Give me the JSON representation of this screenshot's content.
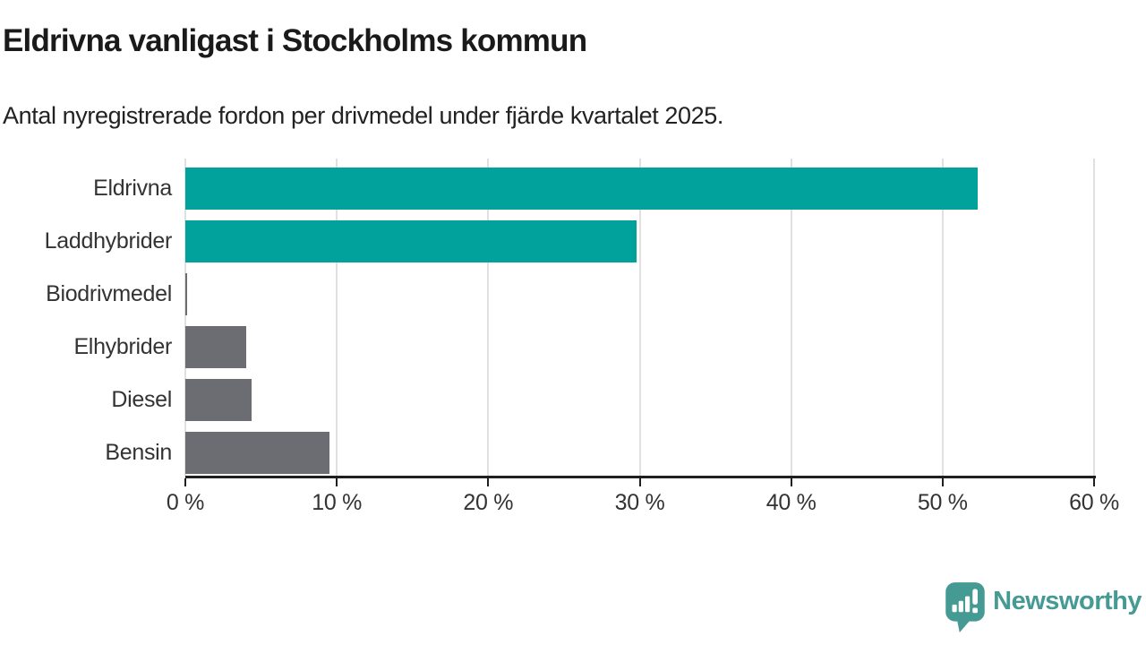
{
  "header": {
    "title": "Eldrivna vanligast i Stockholms kommun",
    "subtitle": "Antal nyregistrerade fordon per drivmedel under fjärde kvartalet 2025."
  },
  "chart_data": {
    "type": "bar",
    "orientation": "horizontal",
    "title": "Eldrivna vanligast i Stockholms kommun",
    "subtitle": "Antal nyregistrerade fordon per drivmedel under fjärde kvartalet 2025.",
    "categories": [
      "Eldrivna",
      "Laddhybrider",
      "Biodrivmedel",
      "Elhybrider",
      "Diesel",
      "Bensin"
    ],
    "values": [
      52.3,
      29.8,
      0.1,
      4.0,
      4.4,
      9.5
    ],
    "unit": "%",
    "xlabel": "",
    "ylabel": "",
    "xlim": [
      0,
      60
    ],
    "x_ticks": [
      0,
      10,
      20,
      30,
      40,
      50,
      60
    ],
    "x_tick_labels": [
      "0 %",
      "10 %",
      "20 %",
      "30 %",
      "40 %",
      "50 %",
      "60 %"
    ],
    "bar_colors": [
      "#00a29b",
      "#00a29b",
      "#6c6c73",
      "#6c6c73",
      "#6c6c73",
      "#6c6c73"
    ],
    "grid": true,
    "legend": "none"
  },
  "colors": {
    "accent_teal": "#00a29b",
    "bar_gray": "#6c6c73",
    "gridline": "#e0e0e0",
    "axis": "#1f1f1f",
    "text": "#333333",
    "brand_teal": "#469a94"
  },
  "footer": {
    "brand": "Newsworthy"
  }
}
